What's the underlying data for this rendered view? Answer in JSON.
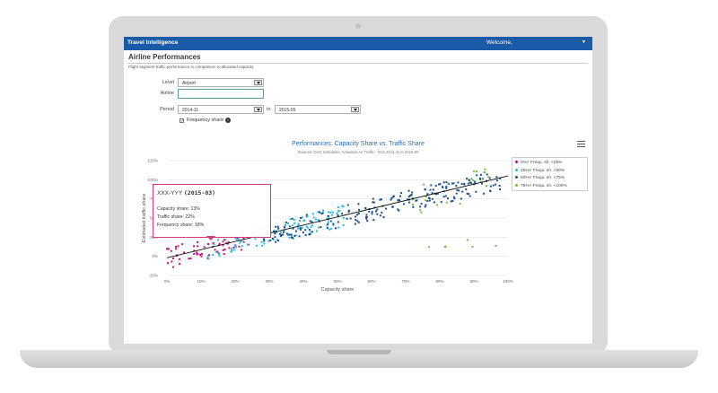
{
  "topbar": {
    "title": "Travel Intelligence",
    "welcome": "Welcome,",
    "caret": "▼"
  },
  "page": {
    "title": "Airline Performances",
    "subtitle": "Flight segment traffic performance in comparison to allocated capacity."
  },
  "form": {
    "level_label": "Level",
    "level_value": "Airport",
    "airline_label": "Airline",
    "airline_value": "",
    "period_label": "Period",
    "period_from": "2014-11",
    "period_to_label": "to",
    "period_to": "2015-05",
    "frequency_share_label": "Frequency share",
    "frequency_share_checked": "✓",
    "info_glyph": "i"
  },
  "icons": {
    "menu": "hamburger-menu-icon",
    "info": "info-icon",
    "dropdown": "dropdown-arrow-icon"
  },
  "colors": {
    "brand": "#1a5aa6",
    "pink": "#c2127a",
    "cyan": "#25b8d9",
    "navy": "#1c4f8f",
    "green": "#6cbf3c",
    "accent": "#2a6ab4"
  },
  "chart_data": {
    "type": "scatter",
    "title": "Performances: Capacity Share vs. Traffic Share",
    "subtitle": "Sources: OAG schedules, Amadeus Air Traffic - from 2014-11 to 2015-05",
    "xlabel": "Capacity share",
    "ylabel": "Estimated traffic share",
    "x_ticks": [
      "0%",
      "10%",
      "20%",
      "30%",
      "40%",
      "50%",
      "60%",
      "70%",
      "80%",
      "90%",
      "100%"
    ],
    "y_ticks": [
      "125%",
      "100%",
      "75%",
      "50%",
      "25%",
      "0%",
      "-25%"
    ],
    "xlim": [
      0,
      100
    ],
    "ylim": [
      -25,
      125
    ],
    "grid": "horizontal",
    "legend_position": "right",
    "trend_line": {
      "from": [
        0,
        -2
      ],
      "to": [
        100,
        105
      ]
    },
    "series": [
      {
        "name": "0%< Frequ. sh. <25%",
        "color": "#c2127a",
        "x_range": [
          0,
          24
        ]
      },
      {
        "name": "25%< Frequ. sh. <50%",
        "color": "#25b8d9",
        "x_range": [
          12,
          52
        ]
      },
      {
        "name": "50%< Frequ. sh. <75%",
        "color": "#1c4f8f",
        "x_range": [
          28,
          98
        ]
      },
      {
        "name": "75%< Frequ. sh. <100%",
        "color": "#6cbf3c",
        "x_range": [
          72,
          98
        ]
      }
    ]
  },
  "tooltip": {
    "title_prefix": "XXX-YYY",
    "title_period": "(2015-03)",
    "capacity": "Capacity share: 13%",
    "traffic": "Traffic share: 22%",
    "frequency": "Frequency share: 18%"
  }
}
